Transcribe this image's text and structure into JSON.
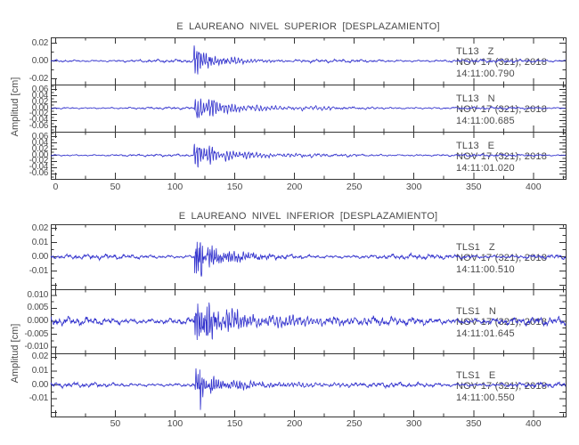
{
  "app": {
    "background": "#ffffff",
    "trace_color": "#3232cd",
    "axis_color": "#333333",
    "text_color": "#4a4a4a"
  },
  "chart_data": {
    "type": "line",
    "x_range": [
      -4,
      427
    ],
    "x_major_tick_step": 50,
    "x_minor_tick_step": 25,
    "grid": false,
    "panels": [
      {
        "title": "E LAUREANO NIVEL SUPERIOR [DESPLAZAMIENTO]",
        "ylabel": "Amplitud [cm]",
        "xtick_labels": [
          "0",
          "50",
          "100",
          "150",
          "200",
          "250",
          "300",
          "350",
          "400"
        ],
        "xtick_values": [
          0,
          50,
          100,
          150,
          200,
          250,
          300,
          350,
          400
        ],
        "traces": [
          {
            "station_channel": "TL13   Z",
            "date": "NOV 17 (321), 2018",
            "time": "14:11:00.790",
            "ylim": 0.026,
            "ytick_step": 0.02,
            "ytick_labels": [
              "0.02",
              "0.00",
              "-0.02"
            ],
            "ytick_values": [
              0.02,
              0,
              -0.02
            ],
            "seed": 11,
            "noise": 0.0013,
            "clip": 0.0253,
            "event_onset": 115,
            "packets": [
              {
                "t0": 115,
                "amp": 0.03,
                "rise": 1.2,
                "decay": 6,
                "freq": 0.48
              },
              {
                "t0": 124,
                "amp": 0.012,
                "rise": 2,
                "decay": 10,
                "freq": 0.42
              },
              {
                "t0": 138,
                "amp": 0.005,
                "rise": 4,
                "decay": 25,
                "freq": 0.35
              }
            ]
          },
          {
            "station_channel": "TL13   N",
            "date": "NOV 17 (321), 2018",
            "time": "14:11:00.685",
            "ylim": 0.0745,
            "ytick_step": 0.02,
            "ytick_labels": [
              "0.06",
              "0.04",
              "0.02",
              "0.00",
              "-0.02",
              "-0.04",
              "-0.06"
            ],
            "ytick_values": [
              0.06,
              0.04,
              0.02,
              0,
              -0.02,
              -0.04,
              -0.06
            ],
            "seed": 22,
            "noise": 0.0028,
            "clip": 0.0733,
            "event_onset": 116,
            "packets": [
              {
                "t0": 116,
                "amp": 0.075,
                "rise": 2,
                "decay": 6,
                "freq": 0.45
              },
              {
                "t0": 127,
                "amp": 0.058,
                "rise": 2,
                "decay": 7,
                "freq": 0.4
              },
              {
                "t0": 140,
                "amp": 0.025,
                "rise": 3,
                "decay": 12,
                "freq": 0.38
              },
              {
                "t0": 158,
                "amp": 0.013,
                "rise": 5,
                "decay": 30,
                "freq": 0.3
              },
              {
                "t0": 190,
                "amp": 0.006,
                "rise": 8,
                "decay": 60,
                "freq": 0.25
              }
            ]
          },
          {
            "station_channel": "TL13   E",
            "date": "NOV 17 (321), 2018",
            "time": "14:11:01.020",
            "ylim": 0.0745,
            "ytick_step": 0.02,
            "ytick_labels": [
              "0.06",
              "0.04",
              "0.02",
              "0.00",
              "-0.02",
              "-0.04",
              "-0.06"
            ],
            "ytick_values": [
              0.06,
              0.04,
              0.02,
              0,
              -0.02,
              -0.04,
              -0.06
            ],
            "seed": 33,
            "noise": 0.0028,
            "clip": 0.0733,
            "event_onset": 115,
            "packets": [
              {
                "t0": 115,
                "amp": 0.08,
                "rise": 1.6,
                "decay": 6,
                "freq": 0.46
              },
              {
                "t0": 126,
                "amp": 0.05,
                "rise": 2,
                "decay": 7,
                "freq": 0.42
              },
              {
                "t0": 140,
                "amp": 0.03,
                "rise": 3,
                "decay": 10,
                "freq": 0.4
              },
              {
                "t0": 155,
                "amp": 0.016,
                "rise": 4,
                "decay": 20,
                "freq": 0.33
              },
              {
                "t0": 185,
                "amp": 0.007,
                "rise": 8,
                "decay": 50,
                "freq": 0.27
              }
            ]
          }
        ]
      },
      {
        "title": "E LAUREANO NIVEL INFERIOR [DESPLAZAMIENTO]",
        "ylabel": "Amplitud [cm]",
        "xtick_labels": [
          "50",
          "100",
          "150",
          "200",
          "250",
          "300",
          "350",
          "400"
        ],
        "xtick_values": [
          50,
          100,
          150,
          200,
          250,
          300,
          350,
          400
        ],
        "traces": [
          {
            "station_channel": "TLS1   Z",
            "date": "NOV 17 (321), 2018",
            "time": "14:11:00.510",
            "ylim": 0.0225,
            "ytick_step": 0.01,
            "ytick_labels": [
              "0.02",
              "0.01",
              "0.00",
              "-0.01"
            ],
            "ytick_values": [
              0.02,
              0.01,
              0,
              -0.01
            ],
            "seed": 44,
            "noise": 0.0013,
            "clip": 0.0221,
            "event_onset": 116,
            "packets": [
              {
                "t0": 116,
                "amp": 0.022,
                "rise": 0.8,
                "decay": 4,
                "freq": 0.7
              },
              {
                "t0": 120.5,
                "amp": 0.024,
                "rise": 0.4,
                "decay": 2.2,
                "freq": 0.55
              },
              {
                "t0": 126,
                "amp": 0.012,
                "rise": 2,
                "decay": 9,
                "freq": 0.6
              },
              {
                "t0": 142,
                "amp": 0.005,
                "rise": 4,
                "decay": 20,
                "freq": 0.5
              }
            ]
          },
          {
            "station_channel": "TLS1   N",
            "date": "NOV 17 (321), 2018",
            "time": "14:11:01.645",
            "ylim": 0.0122,
            "ytick_step": 0.005,
            "ytick_labels": [
              "0.010",
              "0.005",
              "0.000",
              "-0.005",
              "-0.010"
            ],
            "ytick_values": [
              0.01,
              0.005,
              0,
              -0.005,
              -0.01
            ],
            "seed": 55,
            "noise": 0.0012,
            "clip": 0.0119,
            "event_onset": 116,
            "packets": [
              {
                "t0": 116,
                "amp": 0.013,
                "rise": 1.2,
                "decay": 6,
                "freq": 0.62
              },
              {
                "t0": 124,
                "amp": 0.0105,
                "rise": 2,
                "decay": 9,
                "freq": 0.55
              },
              {
                "t0": 140,
                "amp": 0.006,
                "rise": 3,
                "decay": 18,
                "freq": 0.45
              },
              {
                "t0": 170,
                "amp": 0.003,
                "rise": 8,
                "decay": 50,
                "freq": 0.35
              }
            ]
          },
          {
            "station_channel": "TLS1   E",
            "date": "NOV 17 (321), 2018",
            "time": "14:11:00.550",
            "ylim": 0.0225,
            "ytick_step": 0.01,
            "ytick_labels": [
              "0.02",
              "0.01",
              "0.00",
              "-0.01"
            ],
            "ytick_values": [
              0.02,
              0.01,
              0,
              -0.01
            ],
            "seed": 66,
            "noise": 0.0013,
            "clip": 0.0219,
            "event_onset": 116,
            "packets": [
              {
                "t0": 116,
                "amp": 0.013,
                "rise": 1.0,
                "decay": 5,
                "freq": 0.62
              },
              {
                "t0": 120.5,
                "amp": 0.026,
                "rise": 0.35,
                "decay": 2.0,
                "freq": 0.5
              },
              {
                "t0": 128,
                "amp": 0.01,
                "rise": 2,
                "decay": 8,
                "freq": 0.55
              },
              {
                "t0": 145,
                "amp": 0.005,
                "rise": 4,
                "decay": 18,
                "freq": 0.42
              },
              {
                "t0": 175,
                "amp": 0.0025,
                "rise": 8,
                "decay": 45,
                "freq": 0.3
              }
            ]
          }
        ]
      }
    ]
  }
}
